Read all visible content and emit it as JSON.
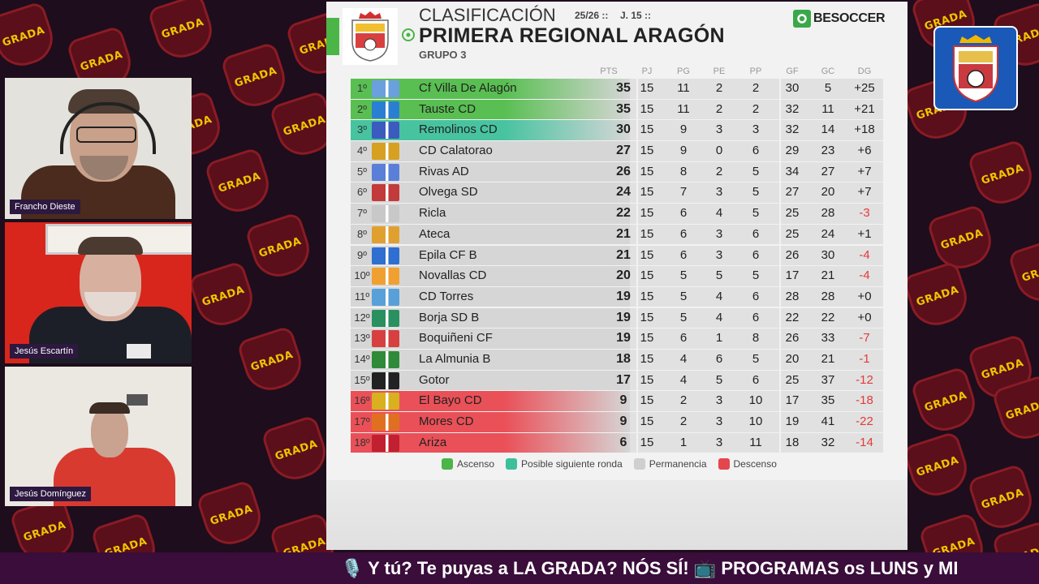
{
  "background": {
    "badge_text": "GRADA",
    "colors": {
      "bg": "#1e0d1c",
      "badge": "#5a0f1b",
      "badge_text": "#f0c400"
    }
  },
  "participants": [
    {
      "name": "Francho Dieste"
    },
    {
      "name": "Jesús Escartín"
    },
    {
      "name": "Jesús Domínguez"
    }
  ],
  "header": {
    "title": "CLASIFICACIÓN",
    "season": "25/26 ::",
    "round": "J. 15 ::",
    "league": "PRIMERA REGIONAL ARAGÓN",
    "group": "GRUPO 3",
    "brand": "BESOCCER"
  },
  "table": {
    "columns": [
      "PTS",
      "PJ",
      "PG",
      "PE",
      "PP",
      "GF",
      "GC",
      "DG"
    ],
    "rows": [
      {
        "pos": "1º",
        "team": "Cf Villa De Alagón",
        "pts": "35",
        "pj": "15",
        "pg": "11",
        "pe": "2",
        "pp": "2",
        "gf": "30",
        "gc": "5",
        "dg": "+25",
        "zone": "ascenso"
      },
      {
        "pos": "2º",
        "team": "Tauste CD",
        "pts": "35",
        "pj": "15",
        "pg": "11",
        "pe": "2",
        "pp": "2",
        "gf": "32",
        "gc": "11",
        "dg": "+21",
        "zone": "ascenso"
      },
      {
        "pos": "3º",
        "team": "Remolinos CD",
        "pts": "30",
        "pj": "15",
        "pg": "9",
        "pe": "3",
        "pp": "3",
        "gf": "32",
        "gc": "14",
        "dg": "+18",
        "zone": "posible"
      },
      {
        "pos": "4º",
        "team": "CD Calatorao",
        "pts": "27",
        "pj": "15",
        "pg": "9",
        "pe": "0",
        "pp": "6",
        "gf": "29",
        "gc": "23",
        "dg": "+6",
        "zone": "permanencia"
      },
      {
        "pos": "5º",
        "team": "Rivas AD",
        "pts": "26",
        "pj": "15",
        "pg": "8",
        "pe": "2",
        "pp": "5",
        "gf": "34",
        "gc": "27",
        "dg": "+7",
        "zone": "permanencia"
      },
      {
        "pos": "6º",
        "team": "Olvega SD",
        "pts": "24",
        "pj": "15",
        "pg": "7",
        "pe": "3",
        "pp": "5",
        "gf": "27",
        "gc": "20",
        "dg": "+7",
        "zone": "permanencia"
      },
      {
        "pos": "7º",
        "team": "Ricla",
        "pts": "22",
        "pj": "15",
        "pg": "6",
        "pe": "4",
        "pp": "5",
        "gf": "25",
        "gc": "28",
        "dg": "-3",
        "zone": "permanencia"
      },
      {
        "pos": "8º",
        "team": "Ateca",
        "pts": "21",
        "pj": "15",
        "pg": "6",
        "pe": "3",
        "pp": "6",
        "gf": "25",
        "gc": "24",
        "dg": "+1",
        "zone": "permanencia"
      },
      {
        "pos": "9º",
        "team": "Epila CF B",
        "pts": "21",
        "pj": "15",
        "pg": "6",
        "pe": "3",
        "pp": "6",
        "gf": "26",
        "gc": "30",
        "dg": "-4",
        "zone": "permanencia"
      },
      {
        "pos": "10º",
        "team": "Novallas CD",
        "pts": "20",
        "pj": "15",
        "pg": "5",
        "pe": "5",
        "pp": "5",
        "gf": "17",
        "gc": "21",
        "dg": "-4",
        "zone": "permanencia"
      },
      {
        "pos": "11º",
        "team": "CD Torres",
        "pts": "19",
        "pj": "15",
        "pg": "5",
        "pe": "4",
        "pp": "6",
        "gf": "28",
        "gc": "28",
        "dg": "+0",
        "zone": "permanencia"
      },
      {
        "pos": "12º",
        "team": "Borja SD B",
        "pts": "19",
        "pj": "15",
        "pg": "5",
        "pe": "4",
        "pp": "6",
        "gf": "22",
        "gc": "22",
        "dg": "+0",
        "zone": "permanencia"
      },
      {
        "pos": "13º",
        "team": "Boquiñeni CF",
        "pts": "19",
        "pj": "15",
        "pg": "6",
        "pe": "1",
        "pp": "8",
        "gf": "26",
        "gc": "33",
        "dg": "-7",
        "zone": "permanencia"
      },
      {
        "pos": "14º",
        "team": "La Almunia B",
        "pts": "18",
        "pj": "15",
        "pg": "4",
        "pe": "6",
        "pp": "5",
        "gf": "20",
        "gc": "21",
        "dg": "-1",
        "zone": "permanencia"
      },
      {
        "pos": "15º",
        "team": "Gotor",
        "pts": "17",
        "pj": "15",
        "pg": "4",
        "pe": "5",
        "pp": "6",
        "gf": "25",
        "gc": "37",
        "dg": "-12",
        "zone": "permanencia"
      },
      {
        "pos": "16º",
        "team": "El Bayo CD",
        "pts": "9",
        "pj": "15",
        "pg": "2",
        "pe": "3",
        "pp": "10",
        "gf": "17",
        "gc": "35",
        "dg": "-18",
        "zone": "descenso"
      },
      {
        "pos": "17º",
        "team": "Mores CD",
        "pts": "9",
        "pj": "15",
        "pg": "2",
        "pe": "3",
        "pp": "10",
        "gf": "19",
        "gc": "41",
        "dg": "-22",
        "zone": "descenso"
      },
      {
        "pos": "18º",
        "team": "Ariza",
        "pts": "6",
        "pj": "15",
        "pg": "1",
        "pe": "3",
        "pp": "11",
        "gf": "18",
        "gc": "32",
        "dg": "-14",
        "zone": "descenso"
      }
    ]
  },
  "legend": [
    {
      "label": "Ascenso",
      "color": "#4cb547"
    },
    {
      "label": "Posible siguiente ronda",
      "color": "#3dbf9c"
    },
    {
      "label": "Permanencia",
      "color": "#cfcfcf"
    },
    {
      "label": "Descenso",
      "color": "#e5454d"
    }
  ],
  "ticker": {
    "text": "🎙️ Y tú? Te puyas a LA GRADA? NÓS SÍ! 📺 PROGRAMAS os LUNS y MI"
  },
  "zone_colors": {
    "ascenso": "#59bf52",
    "posible": "#48c3a0",
    "permanencia": "#d4d4d4",
    "descenso": "#ea5058",
    "negative": "#e33a3a"
  }
}
